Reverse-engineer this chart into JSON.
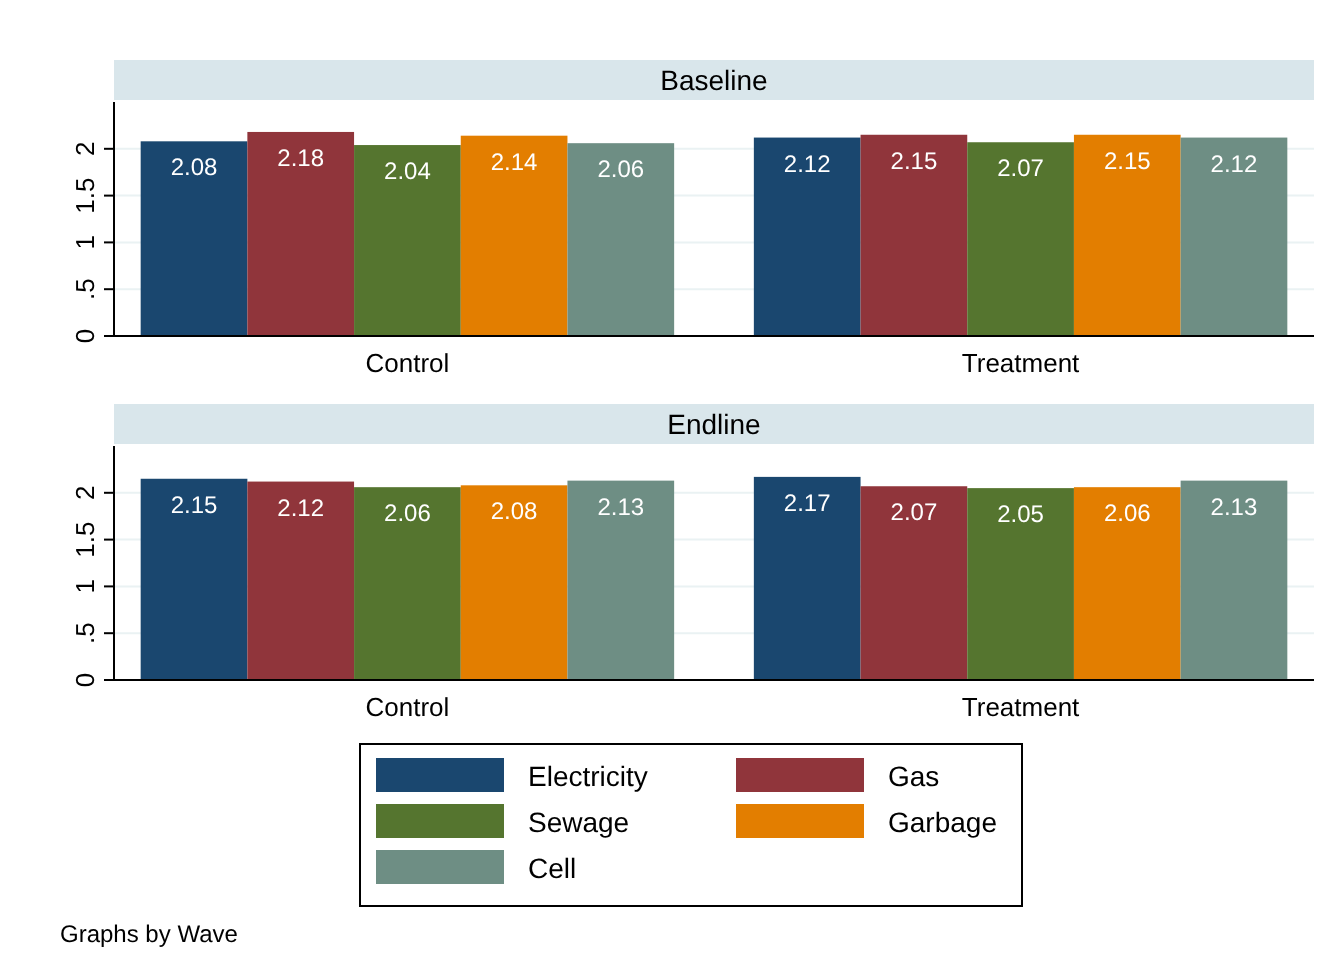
{
  "chart_data": [
    {
      "type": "bar",
      "title": "Baseline",
      "categories": [
        "Control",
        "Treatment"
      ],
      "series": [
        {
          "color": "#1a476f",
          "values": [
            2.08,
            2.12
          ]
        },
        {
          "color": "#90353b",
          "values": [
            2.18,
            2.15
          ]
        },
        {
          "color": "#55752f",
          "values": [
            2.04,
            2.07
          ]
        },
        {
          "color": "#e37e00",
          "values": [
            2.14,
            2.15
          ]
        },
        {
          "color": "#6e8e84",
          "values": [
            2.06,
            2.12
          ]
        }
      ],
      "ylim": [
        0,
        2.5
      ],
      "yticks": [
        0,
        {
          "value": 0.5,
          "label": ".5"
        },
        1,
        1.5,
        2
      ],
      "grid": "y",
      "data_labels": true
    },
    {
      "type": "bar",
      "title": "Endline",
      "categories": [
        "Control",
        "Treatment"
      ],
      "series": [
        {
          "name": "Electricity",
          "color": "#1a476f",
          "values": [
            2.15,
            2.17
          ]
        },
        {
          "name": "Gas",
          "color": "#90353b",
          "values": [
            2.12,
            2.07
          ]
        },
        {
          "name": "Sewage",
          "color": "#55752f",
          "values": [
            2.06,
            2.05
          ]
        },
        {
          "name": "Garbage",
          "color": "#e37e00",
          "values": [
            2.08,
            2.06
          ]
        },
        {
          "name": "Cell",
          "color": "#6e8e84",
          "values": [
            2.13,
            2.13
          ]
        }
      ],
      "ylim": [
        0,
        2.5
      ],
      "yticks": [
        0,
        {
          "value": 0.5,
          "label": ".5"
        },
        1,
        1.5,
        2
      ],
      "grid": "y",
      "data_labels": true,
      "legend": "bottom",
      "annotations": [
        "Graphs by Wave"
      ]
    }
  ]
}
